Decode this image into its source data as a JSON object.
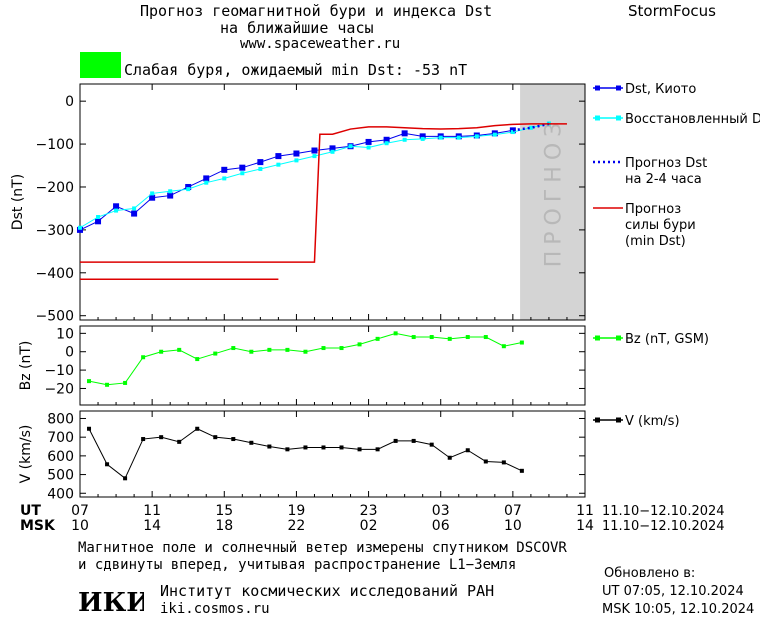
{
  "header": {
    "title_line1": "Прогноз геомагнитной бури и индекса Dst",
    "title_line2": "на ближайшие часы",
    "site": "www.spaceweather.ru",
    "brand": "StormFocus"
  },
  "status": {
    "text": "Слабая буря, ожидаемый min Dst: -53 nT",
    "color": "#00ff00"
  },
  "chart_data": [
    {
      "type": "line",
      "ylabel": "Dst (nT)",
      "ylim": [
        -510,
        40
      ],
      "yticks": [
        "0",
        "−100",
        "−200",
        "−300",
        "−400",
        "−500"
      ],
      "forecast_label": "ПРОГНОЗ",
      "series": [
        {
          "name": "Dst, Киото",
          "color": "#0000ee",
          "x": [
            0,
            1,
            2,
            3,
            4,
            5,
            6,
            7,
            8,
            9,
            10,
            11,
            12,
            13,
            14,
            15,
            16,
            17,
            18,
            19,
            20,
            21,
            22,
            23,
            24
          ],
          "values": [
            -300,
            -280,
            -245,
            -262,
            -225,
            -220,
            -200,
            -180,
            -160,
            -155,
            -142,
            -128,
            -122,
            -115,
            -110,
            -105,
            -95,
            -90,
            -75,
            -82,
            -82,
            -82,
            -80,
            -75,
            -68
          ]
        },
        {
          "name": "Восстановленный Dst",
          "color": "#00ffff",
          "x": [
            0,
            1,
            2,
            3,
            4,
            5,
            6,
            7,
            8,
            9,
            10,
            11,
            12,
            13,
            14,
            15,
            16,
            17,
            18,
            19,
            20,
            21,
            22,
            23,
            24,
            25,
            26
          ],
          "values": [
            -295,
            -270,
            -255,
            -250,
            -215,
            -210,
            -205,
            -190,
            -180,
            -168,
            -158,
            -148,
            -138,
            -128,
            -118,
            -105,
            -108,
            -98,
            -90,
            -88,
            -85,
            -85,
            -82,
            -78,
            -72,
            -62,
            -52
          ]
        },
        {
          "name": "Прогноз Dst\nна 2-4 часа",
          "color": "#0000ee",
          "x": [
            24,
            25,
            26
          ],
          "values": [
            -68,
            -62,
            -53
          ]
        },
        {
          "name": "Прогноз\nсилы бури\n(min Dst)",
          "color": "#dd0000",
          "x": [
            0,
            12.3,
            13,
            13.3,
            14,
            15,
            16,
            17,
            18,
            19,
            20,
            21,
            22,
            23,
            24,
            25,
            26,
            27
          ],
          "values": [
            -375,
            -375,
            -375,
            -77,
            -77,
            -65,
            -60,
            -60,
            -62,
            -64,
            -65,
            -64,
            -62,
            -57,
            -54,
            -53,
            -53,
            -53
          ]
        },
        {
          "name": "",
          "color": "#dd0000",
          "x": [
            0,
            11
          ],
          "values": [
            -415,
            -415
          ]
        }
      ]
    },
    {
      "type": "line",
      "ylabel": "Bz (nT)",
      "ylim": [
        -29,
        14
      ],
      "yticks": [
        "10",
        "0",
        "−10",
        "−20"
      ],
      "series": [
        {
          "name": "Bz (nT, GSM)",
          "color": "#00ff00",
          "x": [
            0.5,
            1.5,
            2.5,
            3.5,
            4.5,
            5.5,
            6.5,
            7.5,
            8.5,
            9.5,
            10.5,
            11.5,
            12.5,
            13.5,
            14.5,
            15.5,
            16.5,
            17.5,
            18.5,
            19.5,
            20.5,
            21.5,
            22.5,
            23.5,
            24.5
          ],
          "values": [
            -16,
            -18,
            -17,
            -3,
            0,
            1,
            -4,
            -1,
            2,
            0,
            1,
            1,
            0,
            2,
            2,
            4,
            7,
            10,
            8,
            8,
            7,
            8,
            8,
            3,
            5
          ]
        }
      ]
    },
    {
      "type": "line",
      "ylabel": "V (km/s)",
      "ylim": [
        380,
        840
      ],
      "yticks": [
        "800",
        "700",
        "600",
        "500",
        "400"
      ],
      "series": [
        {
          "name": "V (km/s)",
          "color": "#000000",
          "x": [
            0.5,
            1.5,
            2.5,
            3.5,
            4.5,
            5.5,
            6.5,
            7.5,
            8.5,
            9.5,
            10.5,
            11.5,
            12.5,
            13.5,
            14.5,
            15.5,
            16.5,
            17.5,
            18.5,
            19.5,
            20.5,
            21.5,
            22.5,
            23.5,
            24.5
          ],
          "values": [
            745,
            555,
            480,
            690,
            700,
            675,
            745,
            700,
            690,
            670,
            650,
            635,
            645,
            645,
            645,
            635,
            635,
            680,
            680,
            660,
            590,
            630,
            570,
            565,
            520
          ]
        }
      ]
    }
  ],
  "time_axis": {
    "xlim": [
      0,
      28
    ],
    "ut_label": "UT",
    "msk_label": "MSK",
    "ut_ticks": [
      "07",
      "11",
      "15",
      "19",
      "23",
      "03",
      "07",
      "11"
    ],
    "msk_ticks": [
      "10",
      "14",
      "18",
      "22",
      "02",
      "06",
      "10",
      "14"
    ],
    "ut_range": "11.10−12.10.2024",
    "msk_range": "11.10−12.10.2024"
  },
  "footer": {
    "line1": "Магнитное поле и солнечный ветер измерены спутником DSCOVR",
    "line2": "и сдвинуты вперед, учитывая распространение L1−Земля",
    "logo_text": "ИКИ",
    "institute": "Институт космических исследований РАН",
    "site": "iki.cosmos.ru",
    "updated_label": "Обновлено в:",
    "updated_ut": "UT  07:05, 12.10.2024",
    "updated_msk": "MSK 10:05, 12.10.2024"
  }
}
